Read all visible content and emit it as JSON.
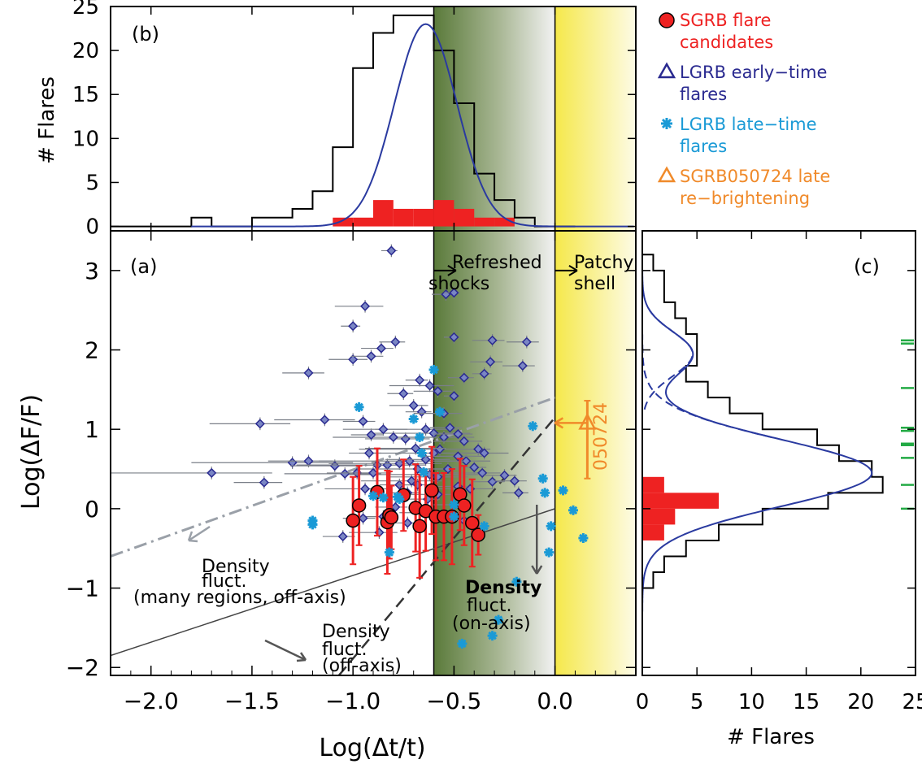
{
  "chart_data": [
    {
      "panel": "(b)",
      "type": "histogram",
      "xlabel": "",
      "ylabel": "# Flares",
      "xlim": [
        -2.2,
        0.4
      ],
      "ylim": [
        -0.5,
        25
      ],
      "yticks": [
        0,
        5,
        10,
        15,
        20,
        25
      ],
      "lgrb_hist": {
        "edges": [
          -2.2,
          -1.8,
          -1.7,
          -1.6,
          -1.5,
          -1.4,
          -1.3,
          -1.2,
          -1.1,
          -1.0,
          -0.9,
          -0.8,
          -0.7,
          -0.6,
          -0.5,
          -0.4,
          -0.3,
          -0.2,
          -0.1,
          0.0,
          0.1
        ],
        "counts": [
          0,
          1,
          0,
          0,
          1,
          1,
          2,
          4,
          9,
          18,
          22,
          24,
          24,
          20,
          14,
          6,
          3,
          1,
          0,
          0
        ]
      },
      "sgrb_hist": {
        "edges": [
          -1.1,
          -1.0,
          -0.9,
          -0.8,
          -0.7,
          -0.6,
          -0.5,
          -0.4,
          -0.3,
          -0.2
        ],
        "counts": [
          1,
          1,
          3,
          2,
          2,
          3,
          2,
          1,
          1
        ]
      },
      "gaussian_fit": {
        "mean": -0.64,
        "sigma": 0.155,
        "peak": 23
      }
    },
    {
      "panel": "(a)",
      "type": "scatter",
      "xlabel": "Log(Δt/t)",
      "ylabel": "Log(ΔF/F)",
      "xlim": [
        -2.2,
        0.4
      ],
      "ylim": [
        -2.1,
        3.5
      ],
      "xticks": [
        -2.0,
        -1.5,
        -1.0,
        -0.5,
        0.0
      ],
      "xticklabels": [
        "−2.0",
        "−1.5",
        "−1.0",
        "−0.5",
        "0.0"
      ],
      "yticks": [
        -2,
        -1,
        0,
        1,
        2,
        3
      ],
      "yticklabels": [
        "−2",
        "−1",
        "0",
        "1",
        "2",
        "3"
      ],
      "refreshed_shocks_region": [
        -0.6,
        0.0
      ],
      "patchy_shell_region": [
        0.0,
        0.4
      ],
      "lines": {
        "dashdot": [
          [
            -2.2,
            -0.6
          ],
          [
            0.0,
            1.4
          ]
        ],
        "solid": [
          [
            -2.2,
            -1.85
          ],
          [
            0.0,
            0.0
          ]
        ],
        "dashed": [
          [
            -1.07,
            -2.1
          ],
          [
            0.0,
            1.15
          ]
        ]
      },
      "lgrb_early": [
        [
          -1.7,
          0.45,
          0.5
        ],
        [
          -1.46,
          1.07,
          0.25
        ],
        [
          -1.22,
          1.71,
          0.13
        ],
        [
          -0.94,
          2.55,
          0.15
        ],
        [
          -0.81,
          3.25,
          0.05
        ],
        [
          -1.0,
          2.3,
          0.06
        ],
        [
          -1.0,
          1.88,
          0.12
        ],
        [
          -0.91,
          1.92,
          0.1
        ],
        [
          -0.86,
          2.02,
          0.1
        ],
        [
          -0.79,
          2.1,
          0.08
        ],
        [
          -0.54,
          2.7,
          0.07
        ],
        [
          -0.5,
          2.72,
          0.05
        ],
        [
          -0.5,
          2.16,
          0.05
        ],
        [
          -0.62,
          1.55,
          0.2
        ],
        [
          -0.58,
          1.48,
          0.12
        ],
        [
          -0.5,
          1.42,
          0.05
        ],
        [
          -0.45,
          1.65,
          0.08
        ],
        [
          -0.35,
          1.7,
          0.06
        ],
        [
          -0.31,
          2.12,
          0.1
        ],
        [
          -0.32,
          1.85,
          0.1
        ],
        [
          -0.16,
          1.8,
          0.1
        ],
        [
          -0.14,
          2.1,
          0.1
        ],
        [
          -0.75,
          1.45,
          0.08
        ],
        [
          -0.7,
          1.3,
          0.12
        ],
        [
          -0.66,
          1.22,
          0.08
        ],
        [
          -1.14,
          1.12,
          0.25
        ],
        [
          -0.95,
          1.1,
          0.1
        ],
        [
          -0.64,
          1.0,
          0.25
        ],
        [
          -0.6,
          0.95,
          0.3
        ],
        [
          -0.55,
          0.9,
          0.25
        ],
        [
          -0.52,
          1.02,
          0.1
        ],
        [
          -0.48,
          0.94,
          0.12
        ],
        [
          -0.45,
          0.85,
          0.15
        ],
        [
          -0.44,
          0.6,
          0.2
        ],
        [
          -0.4,
          0.52,
          0.1
        ],
        [
          -0.36,
          0.45,
          0.15
        ],
        [
          -0.31,
          0.34,
          0.1
        ],
        [
          -0.25,
          0.42,
          0.1
        ],
        [
          -0.2,
          0.35,
          0.1
        ],
        [
          -0.18,
          0.2,
          0.08
        ],
        [
          -1.3,
          0.58,
          0.5
        ],
        [
          -1.22,
          0.6,
          0.2
        ],
        [
          -1.09,
          0.54,
          0.22
        ],
        [
          -1.04,
          0.44,
          0.3
        ],
        [
          -0.98,
          0.45,
          0.15
        ],
        [
          -0.88,
          0.55,
          0.4
        ],
        [
          -0.83,
          0.55,
          0.2
        ],
        [
          -0.77,
          0.57,
          0.35
        ],
        [
          -0.72,
          0.6,
          0.45
        ],
        [
          -0.68,
          0.5,
          0.3
        ],
        [
          -0.64,
          0.62,
          0.2
        ],
        [
          -0.6,
          0.7,
          0.35
        ],
        [
          -0.57,
          0.75,
          0.4
        ],
        [
          -0.69,
          0.76,
          0.25
        ],
        [
          -0.74,
          0.88,
          0.2
        ],
        [
          -0.8,
          0.9,
          0.3
        ],
        [
          -0.91,
          0.93,
          0.1
        ],
        [
          -0.85,
          1.0,
          0.2
        ],
        [
          -1.44,
          0.33,
          0.15
        ],
        [
          -0.94,
          0.25,
          0.2
        ],
        [
          -0.77,
          0.3,
          0.1
        ],
        [
          -0.73,
          0.2,
          0.1
        ],
        [
          -0.68,
          0.3,
          0.1
        ],
        [
          -0.63,
          0.12,
          0.1
        ],
        [
          -0.58,
          0.4,
          0.25
        ],
        [
          -0.53,
          0.5,
          0.1
        ],
        [
          -0.48,
          0.28,
          0.1
        ],
        [
          -0.42,
          0.25,
          0.2
        ],
        [
          -0.38,
          0.75,
          0.1
        ],
        [
          -0.35,
          0.7,
          0.2
        ],
        [
          -0.85,
          -0.1,
          0.1
        ],
        [
          -0.79,
          0.02,
          0.1
        ],
        [
          -0.73,
          -0.18,
          0.08
        ],
        [
          -0.62,
          -0.05,
          0.15
        ],
        [
          -0.53,
          -0.1,
          0.1
        ],
        [
          -0.5,
          0.05,
          0.1
        ],
        [
          -0.45,
          -0.15,
          0.1
        ],
        [
          -1.05,
          -0.35,
          0.1
        ],
        [
          -0.95,
          -0.12,
          0.1
        ],
        [
          -0.87,
          -0.3,
          0.15
        ],
        [
          -0.67,
          1.62,
          0.07
        ],
        [
          -0.48,
          0.66,
          0.2
        ],
        [
          -0.62,
          0.43,
          0.4
        ],
        [
          -0.58,
          0.18,
          0.2
        ],
        [
          -0.71,
          0.35,
          0.25
        ],
        [
          -0.92,
          0.7,
          0.1
        ],
        [
          -0.9,
          0.45,
          0.15
        ],
        [
          -0.55,
          1.2,
          0.15
        ]
      ],
      "lgrb_late": [
        [
          -1.2,
          -0.15
        ],
        [
          -1.2,
          -0.2
        ],
        [
          -0.97,
          1.28
        ],
        [
          -0.9,
          0.16
        ],
        [
          -0.85,
          0.14
        ],
        [
          -0.82,
          -0.55
        ],
        [
          -0.7,
          1.13
        ],
        [
          -0.67,
          0.9
        ],
        [
          -0.66,
          0.7
        ],
        [
          -0.65,
          0.46
        ],
        [
          -0.6,
          1.75
        ],
        [
          -0.57,
          1.22
        ],
        [
          -0.5,
          0.05
        ],
        [
          -0.5,
          -0.1
        ],
        [
          -0.35,
          -0.22
        ],
        [
          -0.31,
          -1.6
        ],
        [
          -0.28,
          -1.4
        ],
        [
          -0.19,
          -0.92
        ],
        [
          -0.11,
          1.04
        ],
        [
          -0.06,
          0.38
        ],
        [
          -0.05,
          0.2
        ],
        [
          -0.03,
          -0.55
        ],
        [
          -0.02,
          -0.22
        ],
        [
          0.04,
          0.23
        ],
        [
          0.09,
          -0.02
        ],
        [
          0.14,
          -0.37
        ],
        [
          -0.46,
          -1.7
        ],
        [
          -0.78,
          0.15
        ],
        [
          -0.77,
          0.12
        ]
      ],
      "sgrb": [
        [
          -1.0,
          -0.15,
          0.55
        ],
        [
          -0.97,
          0.04,
          0.5
        ],
        [
          -0.88,
          0.21,
          0.55
        ],
        [
          -0.83,
          -0.17,
          0.65
        ],
        [
          -0.82,
          -0.08,
          0.55
        ],
        [
          -0.81,
          -0.11,
          0.4
        ],
        [
          -0.75,
          0.17,
          0.45
        ],
        [
          -0.69,
          0.01,
          0.55
        ],
        [
          -0.67,
          -0.22,
          0.65
        ],
        [
          -0.64,
          -0.03,
          0.5
        ],
        [
          -0.61,
          0.23,
          0.55
        ],
        [
          -0.59,
          -0.1,
          0.55
        ],
        [
          -0.55,
          -0.1,
          0.55
        ],
        [
          -0.51,
          -0.1,
          0.6
        ],
        [
          -0.47,
          0.18,
          0.45
        ],
        [
          -0.45,
          0.04,
          0.5
        ],
        [
          -0.41,
          -0.18,
          0.55
        ],
        [
          -0.38,
          -0.33,
          0.25
        ]
      ],
      "sgrb050724": {
        "x": 0.16,
        "y": 1.08,
        "yerr": 0.7
      },
      "annotations": {
        "refreshed": "Refreshed shocks",
        "patchy": "Patchy shell",
        "density_many": [
          "Density",
          "fluct.",
          "(many regions, off-axis)"
        ],
        "density_on": [
          "Density",
          "fluct.",
          "(on-axis)"
        ],
        "density_off": [
          "Density",
          "fluct.",
          "(off-axis)"
        ],
        "grb_label": "050724"
      }
    },
    {
      "panel": "(c)",
      "type": "histogram",
      "xlabel": "# Flares",
      "ylabel": "",
      "xlim": [
        0,
        25
      ],
      "ylim": [
        -2.1,
        3.5
      ],
      "xticks": [
        0,
        5,
        10,
        15,
        20,
        25
      ],
      "lgrb_hist": {
        "edges": [
          -2.1,
          -1.0,
          -0.8,
          -0.6,
          -0.4,
          -0.2,
          0.0,
          0.2,
          0.4,
          0.6,
          0.8,
          1.0,
          1.2,
          1.4,
          1.6,
          1.8,
          2.0,
          2.2,
          2.4,
          2.6,
          2.8,
          3.0,
          3.2,
          3.4
        ],
        "counts": [
          0,
          1,
          2,
          4,
          7,
          11,
          17,
          22,
          21,
          18,
          16,
          11,
          8,
          6,
          4,
          5,
          5,
          4,
          3,
          2,
          2,
          1,
          0
        ]
      },
      "sgrb_hist": {
        "edges": [
          -0.4,
          -0.2,
          0.0,
          0.2,
          0.4
        ],
        "counts": [
          2,
          3,
          7,
          2
        ]
      },
      "gaussian_fit": {
        "mean": 0.45,
        "sigma": 0.43,
        "peak": 22.5
      },
      "sub_gaussians": [
        {
          "mean": 0.45,
          "sigma": 0.42,
          "peak": 21
        },
        {
          "mean": 1.95,
          "sigma": 0.28,
          "peak": 4.6
        }
      ],
      "green_ticks": [
        2.12,
        2.08,
        1.52,
        0.98,
        1.02,
        0.82,
        0.8,
        0.64,
        0.3,
        0.0
      ]
    }
  ],
  "legend": [
    {
      "label": "SGRB flare candidates",
      "lines": [
        "SGRB flare",
        "candidates"
      ],
      "color": "#ee2222",
      "marker": "circle"
    },
    {
      "label": "LGRB early-time flares",
      "lines": [
        "LGRB early−time",
        "flares"
      ],
      "color": "#2a2a90",
      "marker": "triangle"
    },
    {
      "label": "LGRB late-time flares",
      "lines": [
        "LGRB late−time",
        "flares"
      ],
      "color": "#1a9ad6",
      "marker": "asterisk"
    },
    {
      "label": "SGRB050724 late re-brightening",
      "lines": [
        "SGRB050724 late",
        "re−brightening"
      ],
      "color": "#f08a2a",
      "marker": "triangle"
    }
  ],
  "colors": {
    "green": "#5a7a3a",
    "yellow": "#f5e84a",
    "lgrb": "#2a2a90",
    "late": "#1a9ad6",
    "sgrb": "#ee2222",
    "orange": "#f08a2a",
    "curve": "#2a3aa0",
    "gray": "#9aa0a8",
    "darkgray": "#555555",
    "tickgreen": "#22aa44"
  }
}
